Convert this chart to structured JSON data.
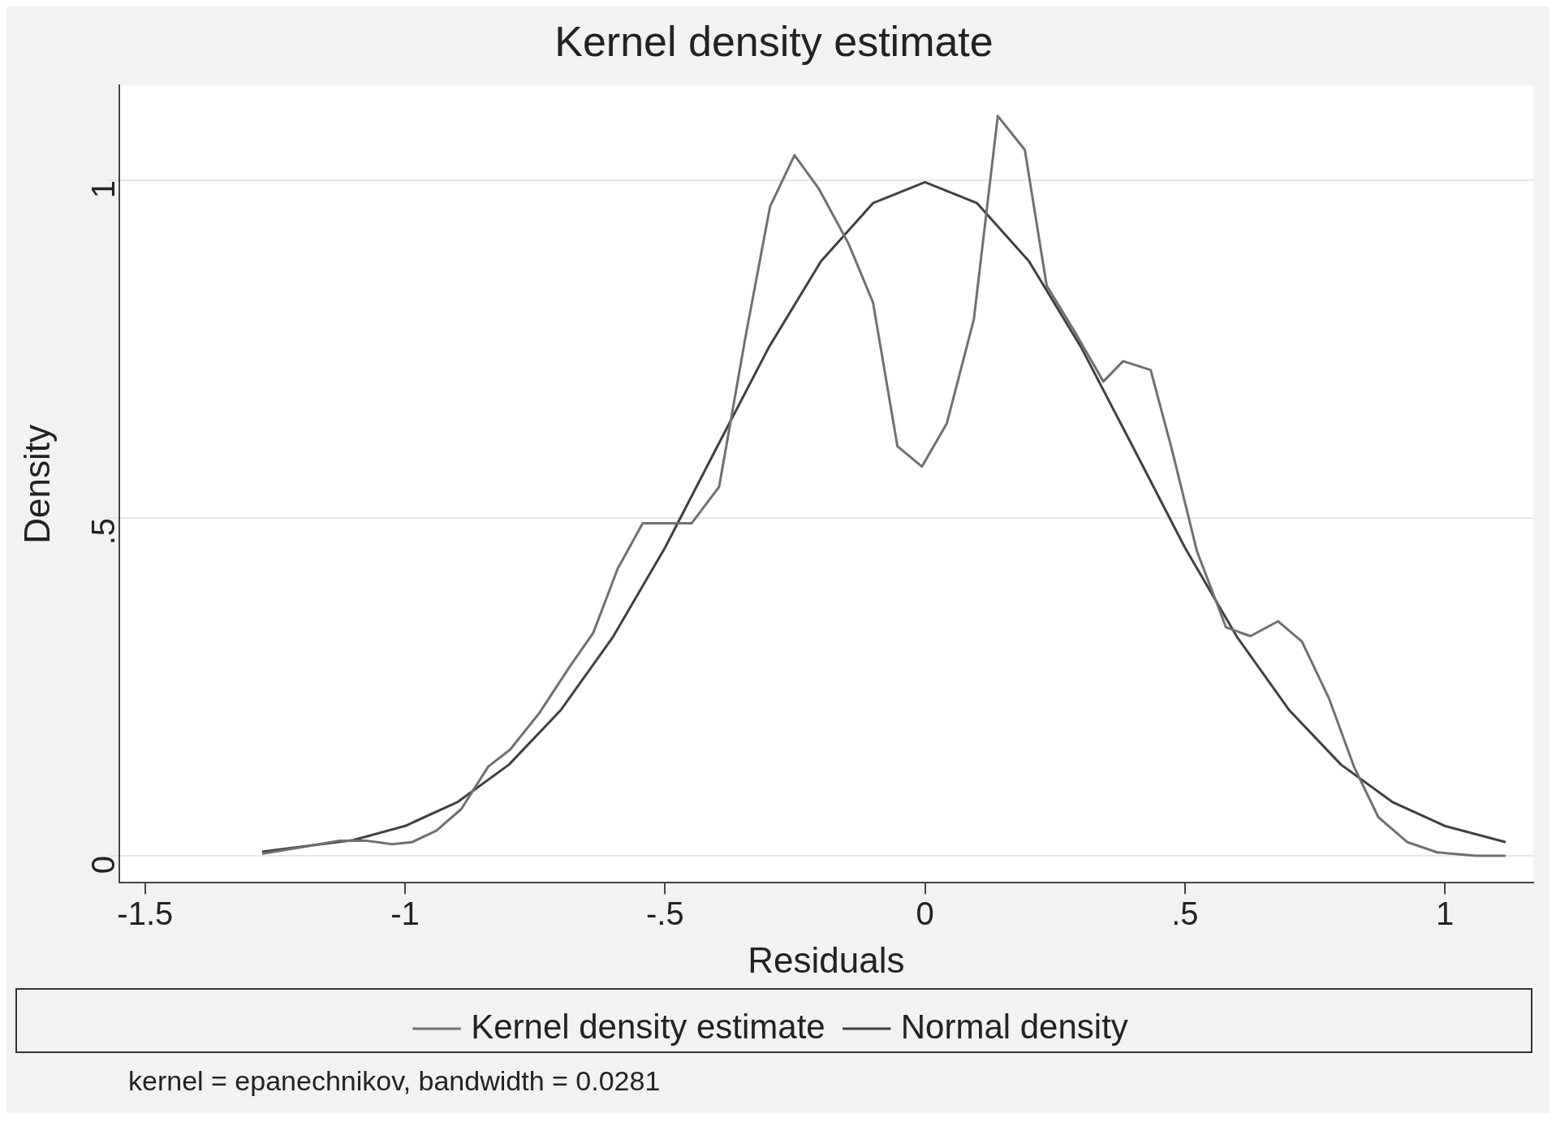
{
  "chart_data": {
    "type": "line",
    "title": "Kernel density estimate",
    "xlabel": "Residuals",
    "ylabel": "Density",
    "xlim": [
      -1.55,
      1.17
    ],
    "ylim": [
      -0.04,
      1.14
    ],
    "xticks": [
      -1.5,
      -1,
      {
        "value": -0.5,
        "label": "-.5"
      },
      0,
      {
        "value": 0.5,
        "label": ".5"
      },
      1
    ],
    "yticks": [
      0,
      {
        "value": 0.5,
        "label": ".5"
      },
      1
    ],
    "grid": "y",
    "legend": "bottom",
    "series": [
      {
        "name": "Kernel density estimate",
        "color": "#707070",
        "x": [
          -1.275,
          -1.204,
          -1.128,
          -1.072,
          -1.025,
          -0.987,
          -0.94,
          -0.892,
          -0.84,
          -0.798,
          -0.742,
          -0.685,
          -0.638,
          -0.591,
          -0.543,
          -0.449,
          -0.396,
          -0.345,
          -0.298,
          -0.251,
          -0.204,
          -0.147,
          -0.1,
          -0.053,
          -0.006,
          0.042,
          0.094,
          0.14,
          0.192,
          0.234,
          0.287,
          0.343,
          0.381,
          0.434,
          0.475,
          0.523,
          0.579,
          0.626,
          0.679,
          0.725,
          0.777,
          0.825,
          0.872,
          0.928,
          0.985,
          1.06,
          1.117
        ],
        "values": [
          0.003,
          0.012,
          0.022,
          0.022,
          0.017,
          0.02,
          0.037,
          0.069,
          0.132,
          0.157,
          0.211,
          0.278,
          0.33,
          0.425,
          0.492,
          0.492,
          0.546,
          0.769,
          0.961,
          1.037,
          0.987,
          0.906,
          0.819,
          0.606,
          0.576,
          0.64,
          0.794,
          1.095,
          1.045,
          0.844,
          0.777,
          0.702,
          0.732,
          0.719,
          0.601,
          0.451,
          0.338,
          0.325,
          0.347,
          0.317,
          0.233,
          0.132,
          0.057,
          0.02,
          0.005,
          0,
          0
        ]
      },
      {
        "name": "Normal density",
        "color": "#404040",
        "x": [
          -1.275,
          -1.1,
          -1,
          -0.9,
          -0.8,
          -0.7,
          -0.6,
          -0.5,
          -0.4,
          -0.3,
          -0.2,
          -0.1,
          0,
          0.1,
          0.2,
          0.3,
          0.4,
          0.5,
          0.6,
          0.7,
          0.8,
          0.9,
          1,
          1.117
        ],
        "values": [
          0.006,
          0.023,
          0.044,
          0.079,
          0.135,
          0.216,
          0.324,
          0.456,
          0.605,
          0.753,
          0.88,
          0.966,
          0.997,
          0.966,
          0.88,
          0.753,
          0.605,
          0.456,
          0.324,
          0.216,
          0.135,
          0.079,
          0.044,
          0.02
        ]
      }
    ],
    "annotations": [
      "kernel = epanechnikov, bandwidth = 0.0281"
    ]
  }
}
